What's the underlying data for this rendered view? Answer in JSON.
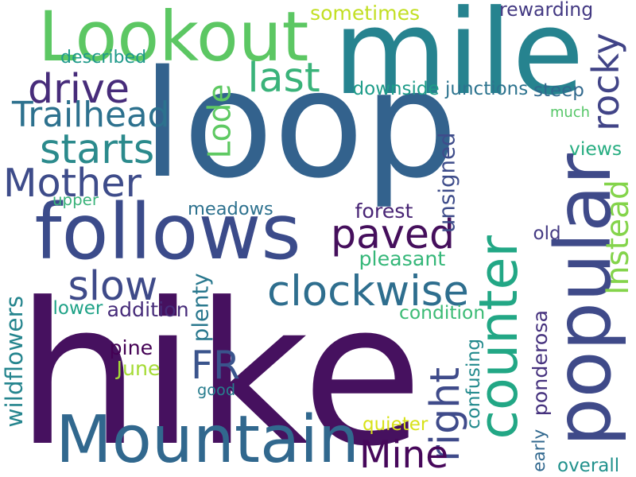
{
  "words": [
    {
      "text": "loop",
      "color": "#33628d",
      "rotated": false
    },
    {
      "text": "hike",
      "color": "#46115f",
      "rotated": false
    },
    {
      "text": "mile",
      "color": "#26838f",
      "rotated": false
    },
    {
      "text": "Lookout",
      "color": "#5cc763",
      "rotated": false
    },
    {
      "text": "follows",
      "color": "#3b4b8a",
      "rotated": false
    },
    {
      "text": "Mountain",
      "color": "#31688e",
      "rotated": false
    },
    {
      "text": "popular",
      "color": "#3f4a89",
      "rotated": true
    },
    {
      "text": "counter",
      "color": "#22a785",
      "rotated": true
    },
    {
      "text": "drive",
      "color": "#472c7a",
      "rotated": false
    },
    {
      "text": "last",
      "color": "#3ab37a",
      "rotated": false
    },
    {
      "text": "Trailhead",
      "color": "#2d718e",
      "rotated": false
    },
    {
      "text": "starts",
      "color": "#2b8a8c",
      "rotated": false
    },
    {
      "text": "Mother",
      "color": "#3e4c8a",
      "rotated": false
    },
    {
      "text": "Lode",
      "color": "#5ec962",
      "rotated": true
    },
    {
      "text": "rocky",
      "color": "#414487",
      "rotated": true
    },
    {
      "text": "paved",
      "color": "#450f5c",
      "rotated": false
    },
    {
      "text": "slow",
      "color": "#3e4a89",
      "rotated": false
    },
    {
      "text": "clockwise",
      "color": "#2e6e8e",
      "rotated": false
    },
    {
      "text": "right",
      "color": "#3f4b8a",
      "rotated": true
    },
    {
      "text": "Instead",
      "color": "#84d44b",
      "rotated": true
    },
    {
      "text": "FR",
      "color": "#3a548c",
      "rotated": false
    },
    {
      "text": "Mine",
      "color": "#46075a",
      "rotated": false
    },
    {
      "text": "sometimes",
      "color": "#c2df23",
      "rotated": false
    },
    {
      "text": "rewarding",
      "color": "#443a83",
      "rotated": false
    },
    {
      "text": "described",
      "color": "#1f9a8a",
      "rotated": false
    },
    {
      "text": "downside",
      "color": "#1e9c89",
      "rotated": false
    },
    {
      "text": "junctions",
      "color": "#2c738e",
      "rotated": false
    },
    {
      "text": "steep",
      "color": "#30688d",
      "rotated": false
    },
    {
      "text": "much",
      "color": "#55c667",
      "rotated": false
    },
    {
      "text": "views",
      "color": "#27ad81",
      "rotated": false
    },
    {
      "text": "unsigned",
      "color": "#3e4c8a",
      "rotated": true
    },
    {
      "text": "upper",
      "color": "#3ab37a",
      "rotated": false
    },
    {
      "text": "meadows",
      "color": "#2d718e",
      "rotated": false
    },
    {
      "text": "forest",
      "color": "#482475",
      "rotated": false
    },
    {
      "text": "old",
      "color": "#443a83",
      "rotated": false
    },
    {
      "text": "pleasant",
      "color": "#35b779",
      "rotated": false
    },
    {
      "text": "plenty",
      "color": "#2a788e",
      "rotated": true
    },
    {
      "text": "lower",
      "color": "#1fa287",
      "rotated": false
    },
    {
      "text": "addition",
      "color": "#472c7a",
      "rotated": false
    },
    {
      "text": "condition",
      "color": "#3bbb75",
      "rotated": false
    },
    {
      "text": "wildflowers",
      "color": "#25858e",
      "rotated": true
    },
    {
      "text": "pine",
      "color": "#440154",
      "rotated": false
    },
    {
      "text": "June",
      "color": "#a5db36",
      "rotated": false
    },
    {
      "text": "good",
      "color": "#287d8e",
      "rotated": false
    },
    {
      "text": "confusing",
      "color": "#238a8d",
      "rotated": true
    },
    {
      "text": "early",
      "color": "#31688e",
      "rotated": true
    },
    {
      "text": "ponderosa",
      "color": "#46327e",
      "rotated": true
    },
    {
      "text": "quieter",
      "color": "#d8e219",
      "rotated": false
    },
    {
      "text": "overall",
      "color": "#21918c",
      "rotated": false
    }
  ]
}
